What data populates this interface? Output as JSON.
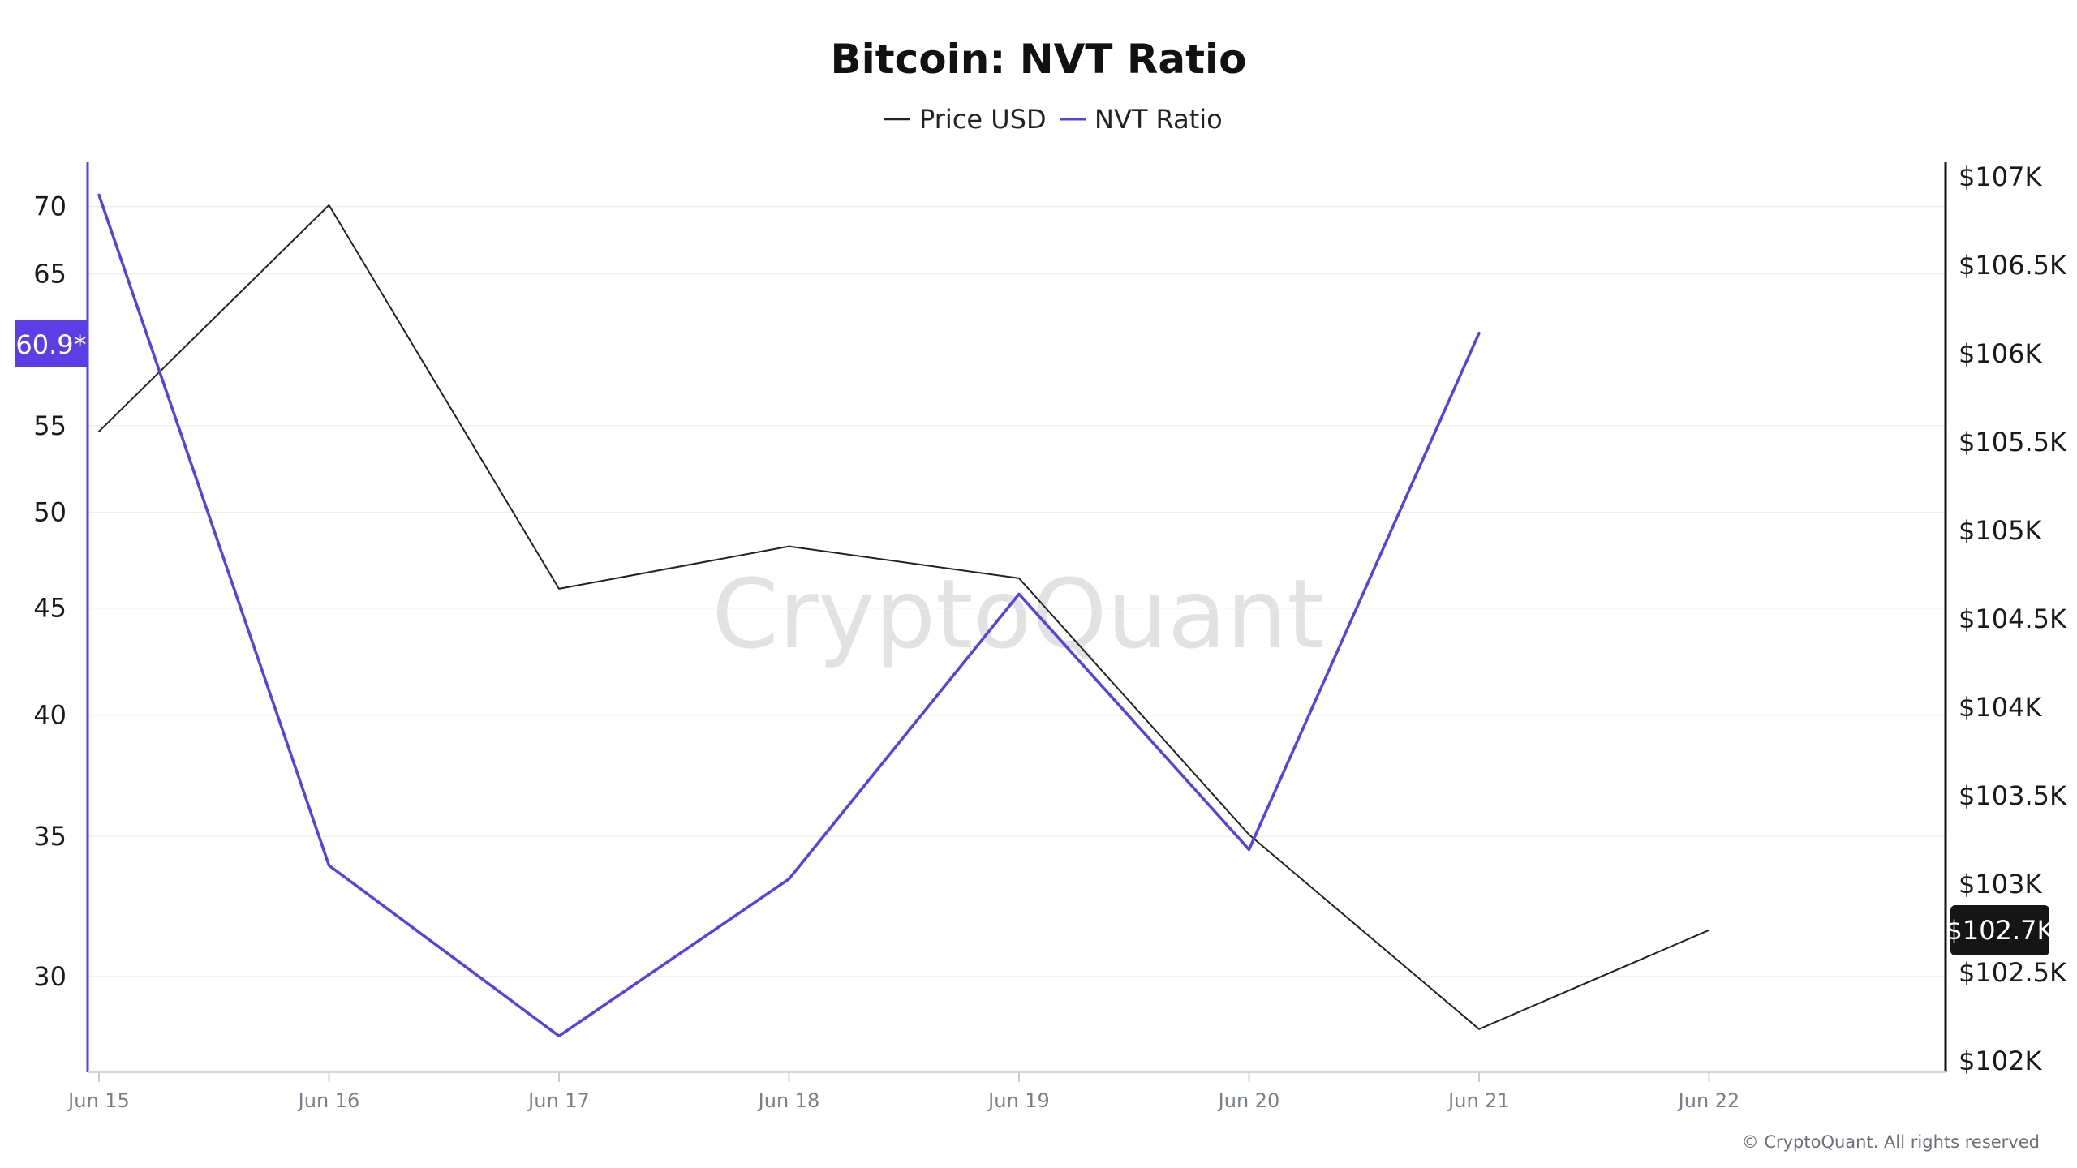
{
  "colors": {
    "price": "#222222",
    "nvt": "#5b3ee6",
    "grid": "#efefef",
    "badge_left": "#5b3ee6",
    "badge_right": "#151515"
  },
  "watermark": "CryptoQuant",
  "copyright": "© CryptoQuant. All rights reserved",
  "badges": {
    "left": "60.9*",
    "right": "$102.7K"
  },
  "chart_data": {
    "type": "line",
    "title": "Bitcoin: NVT Ratio",
    "legend_position": "top-center",
    "grid": true,
    "x": [
      "Jun 15",
      "Jun 16",
      "Jun 17",
      "Jun 18",
      "Jun 19",
      "Jun 20",
      "Jun 21",
      "Jun 22"
    ],
    "series": [
      {
        "name": "Price USD",
        "axis": "right",
        "color": "#222222",
        "values": [
          105560,
          106840,
          104670,
          104910,
          104730,
          103280,
          102180,
          102740
        ]
      },
      {
        "name": "NVT Ratio",
        "axis": "left",
        "color": "#5b3ee6",
        "values": [
          70.9,
          33.9,
          28.1,
          33.4,
          45.7,
          34.5,
          60.9,
          null
        ]
      }
    ],
    "y_left": {
      "scale": "log",
      "range": [
        27,
        73.5
      ],
      "ticks": [
        30,
        35,
        40,
        45,
        50,
        55,
        65,
        70
      ],
      "tick_labels": [
        "30",
        "35",
        "40",
        "45",
        "50",
        "55",
        "65",
        "70"
      ]
    },
    "y_right": {
      "range": [
        102000,
        107000
      ],
      "ticks": [
        102000,
        102500,
        103000,
        103500,
        104000,
        104500,
        105000,
        105500,
        106000,
        106500,
        107000
      ],
      "tick_labels": [
        "$102K",
        "$102.5K",
        "$103K",
        "$103.5K",
        "$104K",
        "$104.5K",
        "$105K",
        "$105.5K",
        "$106K",
        "$106.5K",
        "$107K"
      ]
    }
  }
}
